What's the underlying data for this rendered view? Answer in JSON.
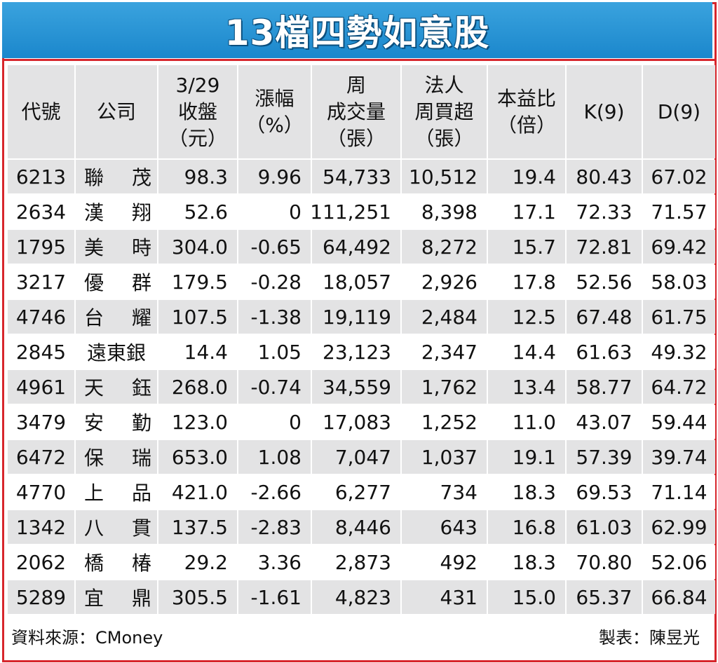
{
  "title": "13檔四勢如意股",
  "headers": [
    [
      "代號"
    ],
    [
      "公司"
    ],
    [
      "3/29",
      "收盤",
      "（元）"
    ],
    [
      "漲幅",
      "（%）"
    ],
    [
      "周",
      "成交量",
      "（張）"
    ],
    [
      "法人",
      "周買超",
      "（張）"
    ],
    [
      "本益比",
      "（倍）"
    ],
    [
      "K(9)"
    ],
    [
      "D(9)"
    ]
  ],
  "rows": [
    {
      "code": "6213",
      "name": [
        "聯",
        "茂"
      ],
      "close": "98.3",
      "change": "9.96",
      "volume": "54,733",
      "net_buy": "10,512",
      "pe": "19.4",
      "k": "80.43",
      "d": "67.02"
    },
    {
      "code": "2634",
      "name": [
        "漢",
        "翔"
      ],
      "close": "52.6",
      "change": "0",
      "volume": "111,251",
      "net_buy": "8,398",
      "pe": "17.1",
      "k": "72.33",
      "d": "71.57"
    },
    {
      "code": "1795",
      "name": [
        "美",
        "時"
      ],
      "close": "304.0",
      "change": "-0.65",
      "volume": "64,492",
      "net_buy": "8,272",
      "pe": "15.7",
      "k": "72.81",
      "d": "69.42"
    },
    {
      "code": "3217",
      "name": [
        "優",
        "群"
      ],
      "close": "179.5",
      "change": "-0.28",
      "volume": "18,057",
      "net_buy": "2,926",
      "pe": "17.8",
      "k": "52.56",
      "d": "58.03"
    },
    {
      "code": "4746",
      "name": [
        "台",
        "耀"
      ],
      "close": "107.5",
      "change": "-1.38",
      "volume": "19,119",
      "net_buy": "2,484",
      "pe": "12.5",
      "k": "67.48",
      "d": "61.75"
    },
    {
      "code": "2845",
      "name": [
        "遠東銀"
      ],
      "close": "14.4",
      "change": "1.05",
      "volume": "23,123",
      "net_buy": "2,347",
      "pe": "14.4",
      "k": "61.63",
      "d": "49.32"
    },
    {
      "code": "4961",
      "name": [
        "天",
        "鈺"
      ],
      "close": "268.0",
      "change": "-0.74",
      "volume": "34,559",
      "net_buy": "1,762",
      "pe": "13.4",
      "k": "58.77",
      "d": "64.72"
    },
    {
      "code": "3479",
      "name": [
        "安",
        "勤"
      ],
      "close": "123.0",
      "change": "0",
      "volume": "17,083",
      "net_buy": "1,252",
      "pe": "11.0",
      "k": "43.07",
      "d": "59.44"
    },
    {
      "code": "6472",
      "name": [
        "保",
        "瑞"
      ],
      "close": "653.0",
      "change": "1.08",
      "volume": "7,047",
      "net_buy": "1,037",
      "pe": "19.1",
      "k": "57.39",
      "d": "39.74"
    },
    {
      "code": "4770",
      "name": [
        "上",
        "品"
      ],
      "close": "421.0",
      "change": "-2.66",
      "volume": "6,277",
      "net_buy": "734",
      "pe": "18.3",
      "k": "69.53",
      "d": "71.14"
    },
    {
      "code": "1342",
      "name": [
        "八",
        "貫"
      ],
      "close": "137.5",
      "change": "-2.83",
      "volume": "8,446",
      "net_buy": "643",
      "pe": "16.8",
      "k": "61.03",
      "d": "62.99"
    },
    {
      "code": "2062",
      "name": [
        "橋",
        "椿"
      ],
      "close": "29.2",
      "change": "3.36",
      "volume": "2,873",
      "net_buy": "492",
      "pe": "18.3",
      "k": "70.80",
      "d": "52.06"
    },
    {
      "code": "5289",
      "name": [
        "宜",
        "鼎"
      ],
      "close": "305.5",
      "change": "-1.61",
      "volume": "4,823",
      "net_buy": "431",
      "pe": "15.0",
      "k": "65.37",
      "d": "66.84"
    }
  ],
  "footer": {
    "source": "資料來源：CMoney",
    "credit": "製表：陳昱光"
  },
  "colors": {
    "border": "#d7262c",
    "title_bg": "#1b87cc",
    "header_bg": "#e3e3e4",
    "stripe_bg": "#e3e3e4"
  }
}
